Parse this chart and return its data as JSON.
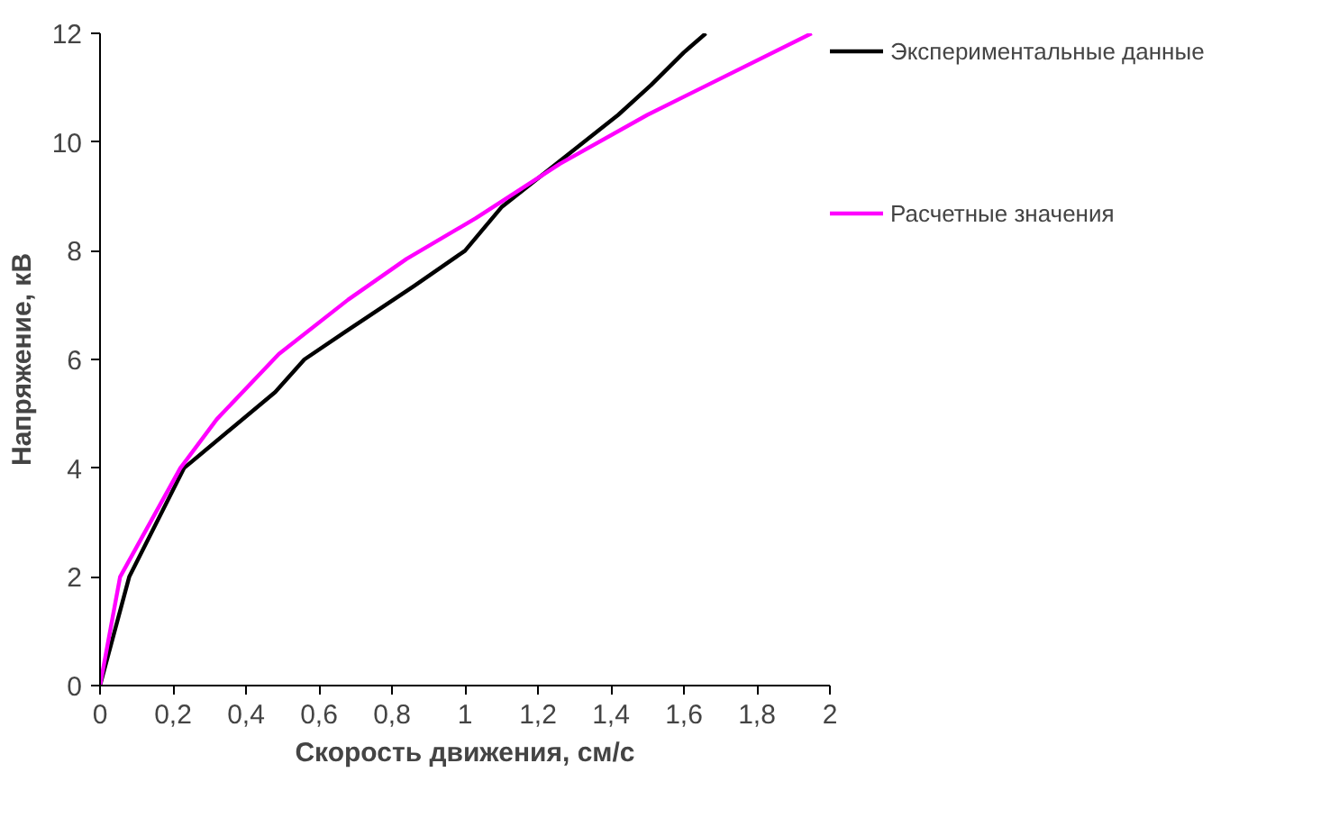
{
  "chart_data": {
    "type": "line",
    "xlabel": "Скорость движения, см/с",
    "ylabel": "Напряжение, кВ",
    "xlim": [
      0,
      2
    ],
    "ylim": [
      0,
      12
    ],
    "xticks": [
      0,
      {
        "value": 0.2,
        "label": "0,2"
      },
      {
        "value": 0.4,
        "label": "0,4"
      },
      {
        "value": 0.6,
        "label": "0,6"
      },
      {
        "value": 0.8,
        "label": "0,8"
      },
      1,
      {
        "value": 1.2,
        "label": "1,2"
      },
      {
        "value": 1.4,
        "label": "1,4"
      },
      {
        "value": 1.6,
        "label": "1,6"
      },
      {
        "value": 1.8,
        "label": "1,8"
      },
      2
    ],
    "yticks": [
      0,
      2,
      4,
      6,
      8,
      10,
      12
    ],
    "grid": false,
    "legend": "right",
    "marker": "none",
    "line_style": "solid",
    "series": [
      {
        "name": "Экспериментальные данные",
        "color": "#000000",
        "x": [
          0,
          0.08,
          0.23,
          0.48,
          0.56,
          0.67,
          0.86,
          1.0,
          1.1,
          1.26,
          1.42,
          1.51,
          1.6,
          1.66
        ],
        "values": [
          0,
          2,
          4,
          5.4,
          6,
          6.5,
          7.35,
          8,
          8.8,
          9.65,
          10.5,
          11.05,
          11.65,
          12
        ]
      },
      {
        "name": "Расчетные значения",
        "color": "#ff00ff",
        "x": [
          0,
          0.055,
          0.22,
          0.32,
          0.49,
          0.68,
          0.84,
          1.03,
          1.26,
          1.5,
          1.95
        ],
        "values": [
          0,
          2,
          4,
          4.9,
          6.1,
          7.1,
          7.85,
          8.6,
          9.6,
          10.5,
          12
        ]
      }
    ]
  }
}
